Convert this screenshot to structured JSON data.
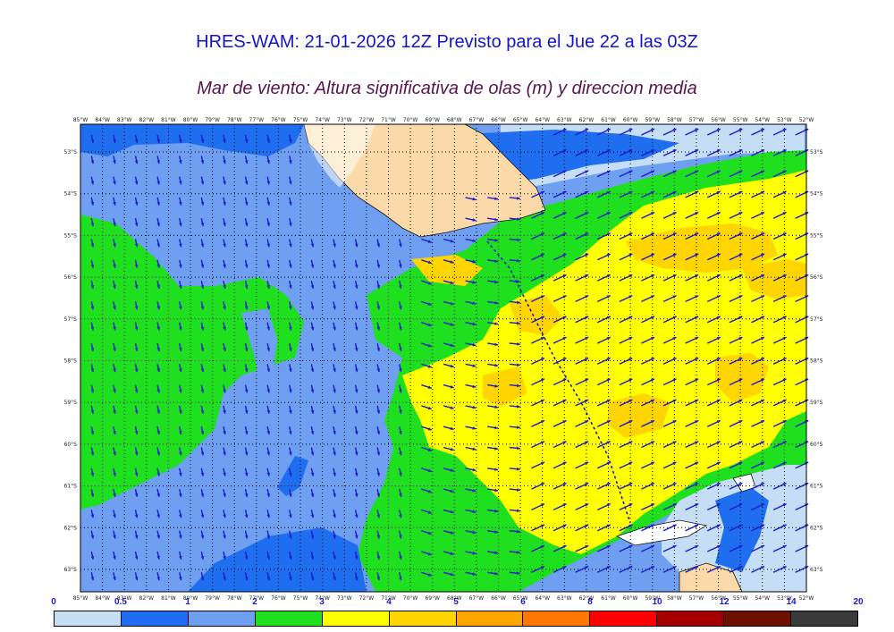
{
  "title": "HRES-WAM: 21-01-2026 12Z Previsto para el Jue 22 a las 03Z",
  "subtitle": "Mar de viento: Altura significativa de olas (m) y direccion media",
  "lon_labels": [
    "85°W",
    "84°W",
    "83°W",
    "82°W",
    "81°W",
    "80°W",
    "79°W",
    "78°W",
    "77°W",
    "76°W",
    "75°W",
    "74°W",
    "73°W",
    "72°W",
    "71°W",
    "70°W",
    "69°W",
    "68°W",
    "67°W",
    "66°W",
    "65°W",
    "64°W",
    "63°W",
    "62°W",
    "61°W",
    "60°W",
    "59°W",
    "58°W",
    "57°W",
    "56°W",
    "55°W",
    "54°W",
    "53°W",
    "52°W"
  ],
  "lat_labels": [
    "53°S",
    "54°S",
    "55°S",
    "56°S",
    "57°S",
    "58°S",
    "59°S",
    "60°S",
    "61°S",
    "62°S",
    "63°S"
  ],
  "colorbar": {
    "ticks": [
      "0",
      "0.5",
      "1",
      "2",
      "3",
      "4",
      "5",
      "6",
      "8",
      "10",
      "12",
      "14",
      "20"
    ],
    "colors": [
      "#c6ddf6",
      "#1f6ef0",
      "#6f9ff1",
      "#1ee01e",
      "#ffff00",
      "#ffd500",
      "#ffa500",
      "#ff7700",
      "#ff0000",
      "#a50000",
      "#6e1000",
      "#3a3a3a"
    ]
  },
  "palette": {
    "land": "#fbd9a8",
    "wave_light": "#c6ddf6",
    "wave_blue": "#1f6ef0",
    "wave_mid": "#6f9ff1",
    "wave_green": "#1ee01e",
    "wave_yellow": "#ffff00",
    "wave_gold": "#ffd500",
    "arrow": "#1a1acc"
  }
}
